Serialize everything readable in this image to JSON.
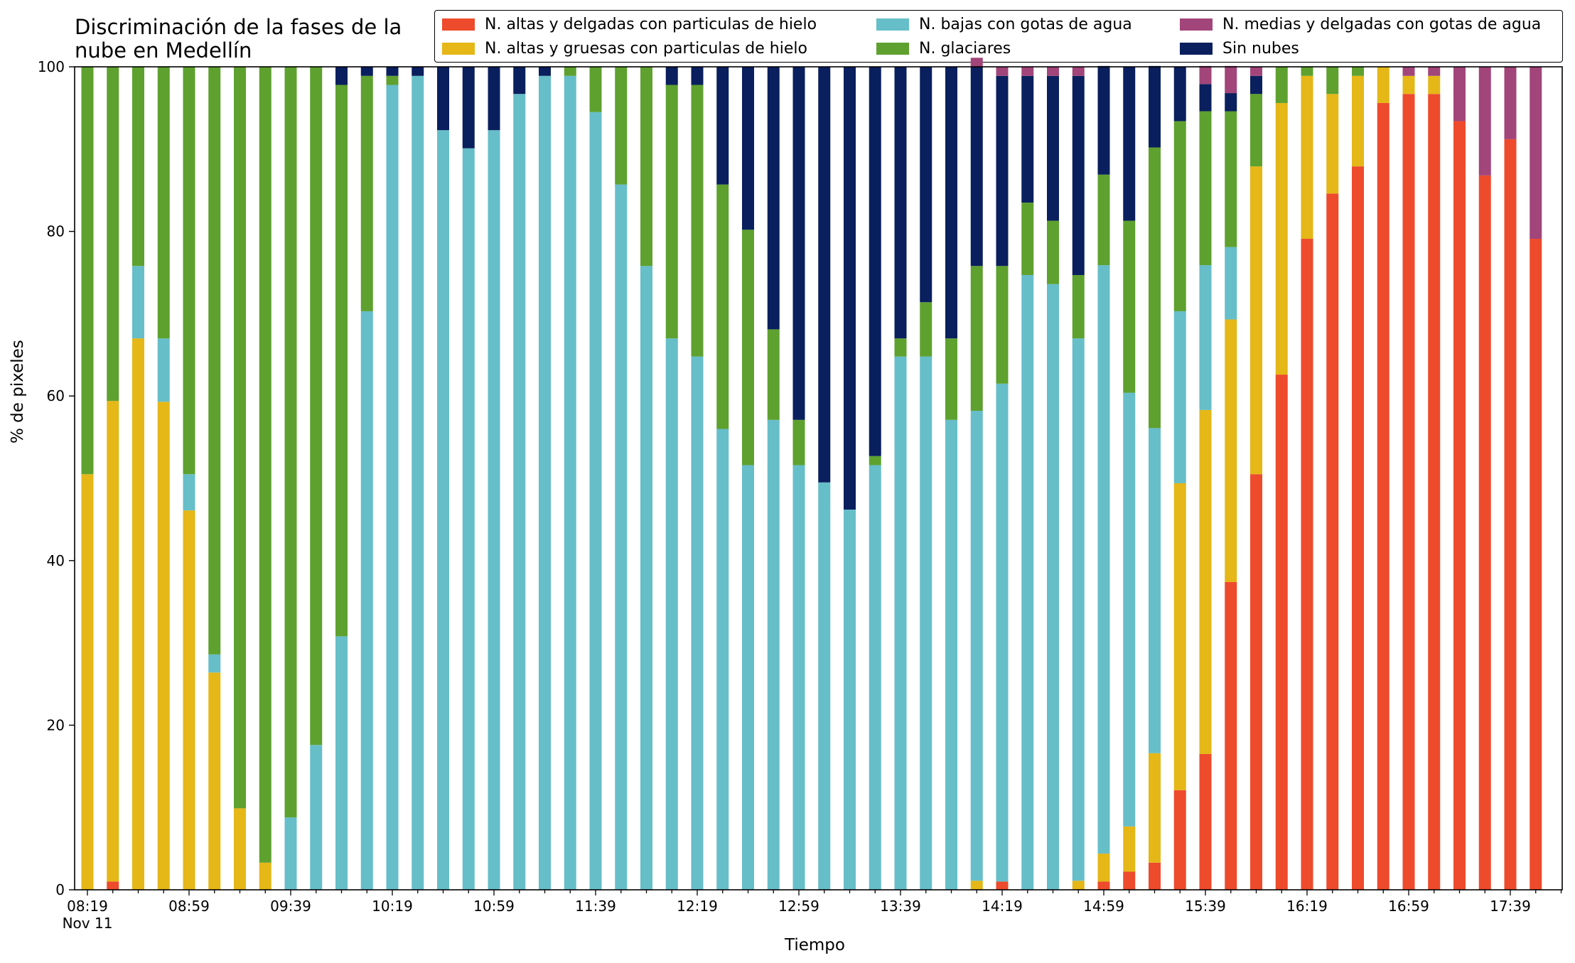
{
  "chart_data": {
    "type": "bar",
    "stacked": true,
    "title": "Discriminación de la fases de la\nnube en Medellín",
    "xlabel": "Tiempo",
    "ylabel": "% de pixeles",
    "ylim": [
      0,
      100
    ],
    "yticks": [
      0,
      20,
      40,
      60,
      80,
      100
    ],
    "legend_position": "top-right",
    "grid": false,
    "xtick_labels": [
      "08:19\nNov 11",
      "08:59",
      "09:39",
      "10:19",
      "10:59",
      "11:39",
      "12:19",
      "12:59",
      "13:39",
      "14:19",
      "14:59",
      "15:39",
      "16:19",
      "16:59",
      "17:39"
    ],
    "categories": [
      "08:19",
      "08:29",
      "08:39",
      "08:49",
      "08:59",
      "09:09",
      "09:19",
      "09:29",
      "09:39",
      "09:49",
      "09:59",
      "10:09",
      "10:19",
      "10:29",
      "10:39",
      "10:49",
      "10:59",
      "11:09",
      "11:19",
      "11:29",
      "11:39",
      "11:49",
      "11:59",
      "12:09",
      "12:19",
      "12:29",
      "12:39",
      "12:49",
      "12:59",
      "13:09",
      "13:19",
      "13:29",
      "13:39",
      "13:49",
      "13:59",
      "14:09",
      "14:19",
      "14:29",
      "14:39",
      "14:49",
      "14:59",
      "15:09",
      "15:19",
      "15:29",
      "15:39",
      "15:49",
      "15:59",
      "16:09",
      "16:19",
      "16:29",
      "16:39",
      "16:49",
      "16:59",
      "17:09",
      "17:19",
      "17:29",
      "17:39",
      "17:49"
    ],
    "series": [
      {
        "name": "N. altas y delgadas con particulas de hielo",
        "color": "#ee4a2c",
        "values": [
          0,
          1,
          0,
          0,
          0,
          0,
          0,
          0,
          0,
          0,
          0,
          0,
          0,
          0,
          0,
          0,
          0,
          0,
          0,
          0,
          0,
          0,
          0,
          0,
          0,
          0,
          0,
          0,
          0,
          0,
          0,
          0,
          0,
          0,
          0,
          0,
          1,
          0,
          0,
          0,
          1,
          2.2,
          3.3,
          12.1,
          16.5,
          37.4,
          50.5,
          62.6,
          79.1,
          84.6,
          87.9,
          95.6,
          96.7,
          96.7,
          93.4,
          86.8,
          91.2,
          79.1
        ]
      },
      {
        "name": "N. altas y gruesas con particulas de hielo",
        "color": "#e5b717",
        "values": [
          50.5,
          58.4,
          67,
          59.3,
          46.1,
          26.4,
          9.9,
          3.3,
          0,
          0,
          0,
          0,
          0,
          0,
          0,
          0,
          0,
          0,
          0,
          0,
          0,
          0,
          0,
          0,
          0,
          0,
          0,
          0,
          0,
          0,
          0,
          0,
          0,
          0,
          0,
          1.1,
          0,
          0,
          0,
          1.1,
          3.4,
          5.5,
          13.3,
          37.3,
          41.8,
          31.9,
          37.4,
          33,
          19.8,
          12.1,
          11,
          4.4,
          2.2,
          2.2,
          0,
          0,
          0,
          0
        ]
      },
      {
        "name": "N. bajas con gotas de agua",
        "color": "#66bec9",
        "values": [
          0,
          0,
          8.8,
          7.7,
          4.4,
          2.2,
          0,
          0,
          8.8,
          17.6,
          30.8,
          70.3,
          97.8,
          98.9,
          92.3,
          90.1,
          92.3,
          96.7,
          98.9,
          98.9,
          94.5,
          85.7,
          75.8,
          67,
          64.8,
          56,
          51.6,
          57.1,
          51.6,
          49.5,
          46.2,
          51.6,
          64.8,
          64.8,
          57.1,
          57.1,
          60.5,
          74.7,
          73.6,
          65.9,
          71.5,
          52.7,
          39.5,
          20.9,
          17.6,
          8.8,
          0,
          0,
          0,
          0,
          0,
          0,
          0,
          0,
          0,
          0,
          0,
          0
        ]
      },
      {
        "name": "N. glaciares",
        "color": "#5ea12f",
        "values": [
          49.5,
          40.6,
          24.2,
          33,
          49.5,
          71.4,
          90.1,
          96.7,
          91.2,
          82.4,
          67,
          28.6,
          1.1,
          0,
          0,
          0,
          0,
          0,
          0,
          1.1,
          5.5,
          14.3,
          24.2,
          30.8,
          33,
          29.7,
          28.6,
          11,
          5.5,
          0,
          0,
          1.1,
          2.2,
          6.6,
          9.9,
          17.6,
          14.3,
          8.8,
          7.7,
          7.7,
          11,
          20.9,
          34.1,
          23.1,
          18.7,
          16.5,
          8.8,
          4.4,
          1.1,
          3.3,
          1.1,
          0,
          0,
          0,
          0,
          0,
          0,
          0
        ]
      },
      {
        "name": "Sin nubes",
        "color": "#0a1f5e",
        "values": [
          0,
          0,
          0,
          0,
          0,
          0,
          0,
          0,
          0,
          0,
          2.2,
          1.1,
          1.1,
          1.1,
          7.7,
          9.9,
          7.7,
          3.3,
          1.1,
          0,
          0,
          0,
          0,
          2.2,
          2.2,
          14.3,
          19.8,
          31.9,
          42.9,
          50.5,
          53.8,
          47.3,
          33,
          28.6,
          33,
          24.2,
          23.1,
          15.4,
          17.6,
          24.2,
          13.2,
          18.7,
          9.9,
          6.6,
          3.3,
          2.2,
          2.2,
          0,
          0,
          0,
          0,
          0,
          0,
          0,
          0,
          0,
          0,
          0
        ]
      },
      {
        "name": "N. medias y delgadas con gotas de agua",
        "color": "#a2457a",
        "values": [
          0,
          0,
          0,
          0,
          0,
          0,
          0,
          0,
          0,
          0,
          0,
          0,
          0,
          0,
          0,
          0,
          0,
          0,
          0,
          0,
          0,
          0,
          0,
          0,
          0,
          0,
          0,
          0,
          0,
          0,
          0,
          0,
          0,
          0,
          0,
          1.1,
          1.1,
          1.1,
          1.1,
          1.1,
          0,
          0,
          0,
          0,
          2.2,
          3.3,
          1.1,
          0,
          0,
          0,
          0,
          0,
          1.1,
          1.1,
          6.6,
          13.2,
          8.8,
          20.9
        ]
      }
    ]
  }
}
